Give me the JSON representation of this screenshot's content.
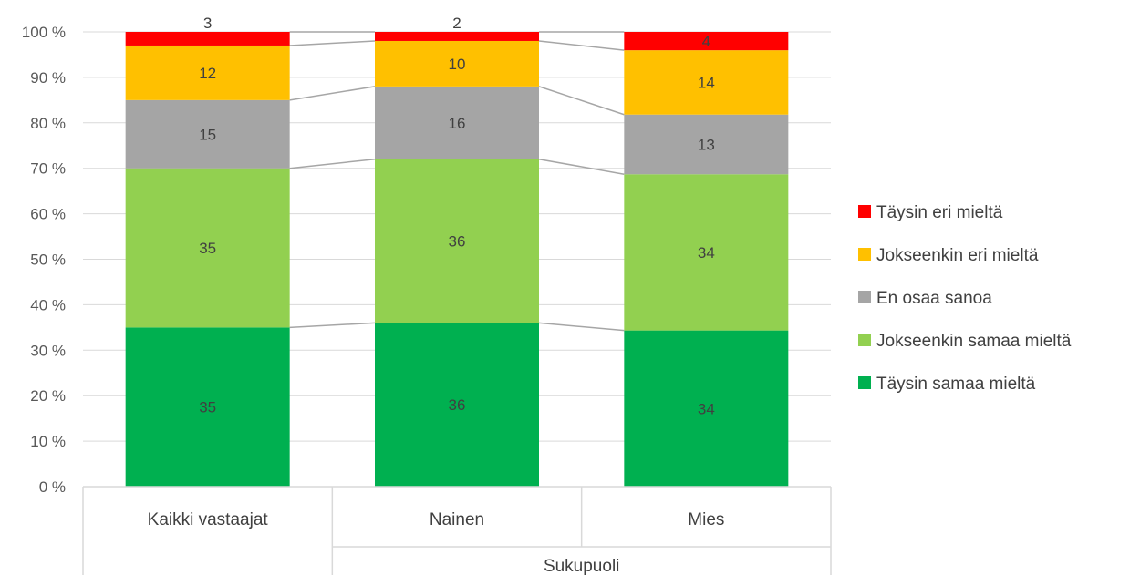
{
  "chart_data": {
    "type": "bar",
    "stacked": "percent",
    "categories": [
      "Kaikki vastaajat",
      "Nainen",
      "Mies"
    ],
    "group_label": "Sukupuoli",
    "group_members": [
      "Nainen",
      "Mies"
    ],
    "series": [
      {
        "name": "Täysin samaa mieltä",
        "values": [
          35,
          36,
          34
        ],
        "color": "#00b050"
      },
      {
        "name": "Jokseenkin samaa mieltä",
        "values": [
          35,
          36,
          34
        ],
        "color": "#92d050"
      },
      {
        "name": "En osaa sanoa",
        "values": [
          15,
          16,
          13
        ],
        "color": "#a5a5a5"
      },
      {
        "name": "Jokseenkin eri mieltä",
        "values": [
          12,
          10,
          14
        ],
        "color": "#ffc000"
      },
      {
        "name": "Täysin eri mieltä",
        "values": [
          3,
          2,
          4
        ],
        "color": "#ff0000"
      }
    ],
    "ylim": [
      0,
      100
    ],
    "yticks": [
      "0 %",
      "10 %",
      "20 %",
      "30 %",
      "40 %",
      "50 %",
      "60 %",
      "70 %",
      "80 %",
      "90 %",
      "100 %"
    ],
    "grid": true,
    "series_lines": true,
    "legend_position": "right"
  }
}
